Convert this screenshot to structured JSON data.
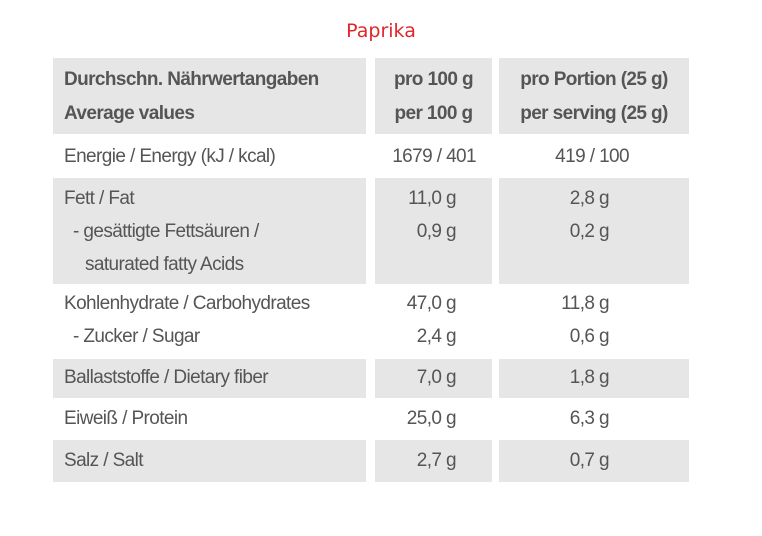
{
  "title": "Paprika",
  "header": {
    "col1": [
      "Durchschn. Nährwertangaben",
      "Average values"
    ],
    "col2": [
      "pro 100 g",
      "per 100 g"
    ],
    "col3": [
      "pro Portion (25 g)",
      "per serving (25 g)"
    ]
  },
  "rows": [
    {
      "labels": [
        "Energie / Energy (kJ / kcal)"
      ],
      "per100": [
        "1679 / 401"
      ],
      "portion": [
        "419 / 100"
      ]
    },
    {
      "labels": [
        "Fett / Fat",
        "- gesättigte Fettsäuren /",
        "saturated fatty Acids"
      ],
      "per100": [
        "11,0 g",
        "0,9 g"
      ],
      "portion": [
        "2,8 g",
        "0,2 g"
      ]
    },
    {
      "labels": [
        "Kohlenhydrate / Carbohydrates",
        "- Zucker / Sugar"
      ],
      "per100": [
        "47,0 g",
        "2,4 g"
      ],
      "portion": [
        "11,8 g",
        "0,6 g"
      ]
    },
    {
      "labels": [
        "Ballaststoffe / Dietary fiber"
      ],
      "per100": [
        "7,0 g"
      ],
      "portion": [
        "1,8 g"
      ]
    },
    {
      "labels": [
        "Eiweiß / Protein"
      ],
      "per100": [
        "25,0 g"
      ],
      "portion": [
        "6,3 g"
      ]
    },
    {
      "labels": [
        "Salz / Salt"
      ],
      "per100": [
        "2,7 g"
      ],
      "portion": [
        "0,7 g"
      ]
    }
  ]
}
